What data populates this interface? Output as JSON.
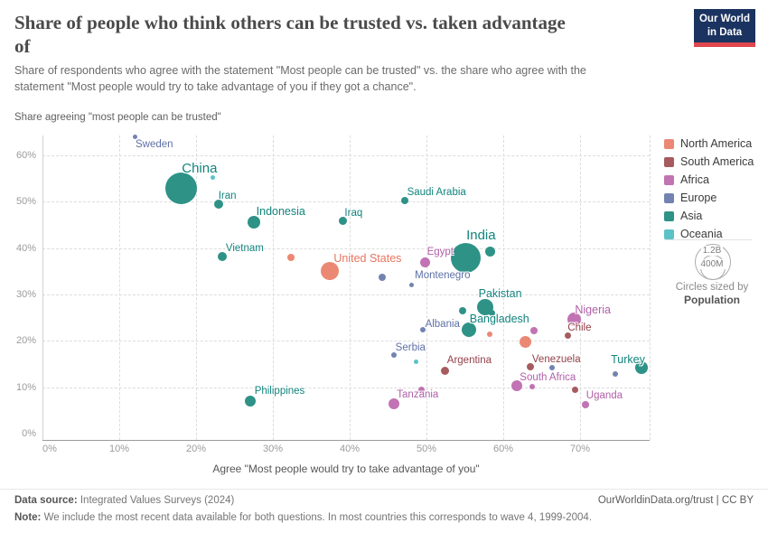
{
  "logo": {
    "line1": "Our World",
    "line2": "in Data"
  },
  "chart_data": {
    "type": "scatter",
    "title": "Share of people who think others can be trusted vs. taken advantage\nof",
    "subtitle": "Share of respondents who agree with the statement \"Most people can be trusted\" vs. the share who agree with the\nstatement \"Most people would try to take advantage of you if they got a chance\".",
    "ylabel": "Share agreeing \"most people can be trusted\"",
    "xlabel": "Agree \"Most people would try to take advantage of you\"",
    "x_ticks": [
      0,
      10,
      20,
      30,
      40,
      50,
      60,
      70
    ],
    "y_ticks": [
      0,
      10,
      20,
      30,
      40,
      50,
      60
    ],
    "xlim": [
      0,
      79
    ],
    "ylim": [
      0,
      65
    ],
    "grid": true,
    "legend_position": "right",
    "tick_suffix": "%",
    "series": [
      {
        "name": "North America",
        "color": "#EB8874",
        "label_color": "#E8745F",
        "points": [
          {
            "name": "United States",
            "x": 37.4,
            "y": 35.1,
            "r": 10,
            "label": {
              "dx": 42,
              "dy": -13,
              "size": 12.5
            }
          },
          {
            "x": 32.4,
            "y": 37.9,
            "r": 4
          },
          {
            "x": 58.2,
            "y": 21.4,
            "r": 3
          },
          {
            "x": 62.9,
            "y": 19.7,
            "r": 6.5
          }
        ]
      },
      {
        "name": "South America",
        "color": "#A65B5E",
        "label_color": "#933F48",
        "points": [
          {
            "name": "Chile",
            "x": 68.4,
            "y": 21.1,
            "r": 3.5,
            "label": {
              "dx": 13,
              "dy": -8
            }
          },
          {
            "name": "Argentina",
            "x": 52.4,
            "y": 13.6,
            "r": 4.5,
            "label": {
              "dx": 27,
              "dy": -10
            }
          },
          {
            "name": "Venezuela",
            "x": 63.5,
            "y": 14.5,
            "r": 4,
            "label": {
              "dx": 29,
              "dy": -7
            }
          },
          {
            "x": 69.4,
            "y": 9.4,
            "r": 3.5
          }
        ]
      },
      {
        "name": "Africa",
        "color": "#C173B3",
        "label_color": "#B05FA8",
        "points": [
          {
            "name": "Egypt",
            "x": 49.8,
            "y": 37.0,
            "r": 5.5,
            "label": {
              "dx": 17,
              "dy": -10
            }
          },
          {
            "name": "Nigeria",
            "x": 69.2,
            "y": 24.6,
            "r": 7.5,
            "label": {
              "dx": 21,
              "dy": -10,
              "size": 12.5
            }
          },
          {
            "name": "South Africa",
            "x": 61.8,
            "y": 10.3,
            "r": 6,
            "label": {
              "dx": 34,
              "dy": -8
            }
          },
          {
            "name": "Uganda",
            "x": 70.7,
            "y": 6.2,
            "r": 4,
            "label": {
              "dx": 21,
              "dy": -9
            }
          },
          {
            "name": "Tanzania",
            "x": 45.8,
            "y": 6.4,
            "r": 6,
            "label": {
              "dx": 26,
              "dy": -9
            }
          },
          {
            "x": 64.0,
            "y": 22.3,
            "r": 4
          },
          {
            "x": 63.8,
            "y": 10.2,
            "r": 3
          },
          {
            "x": 49.4,
            "y": 9.4,
            "r": 3.5
          }
        ]
      },
      {
        "name": "Europe",
        "color": "#7383B1",
        "label_color": "#5E70A6",
        "points": [
          {
            "name": "Sweden",
            "x": 12.0,
            "y": 64.0,
            "r": 2.5,
            "label": {
              "dx": 1,
              "dy": 9,
              "anchor": "start"
            }
          },
          {
            "name": "Montenegro",
            "x": 48.1,
            "y": 32.0,
            "r": 2.5,
            "label": {
              "dx": 34,
              "dy": -10
            }
          },
          {
            "name": "Albania",
            "x": 49.5,
            "y": 22.4,
            "r": 3,
            "label": {
              "dx": 22,
              "dy": -5
            }
          },
          {
            "name": "Serbia",
            "x": 45.8,
            "y": 17.0,
            "r": 3,
            "label": {
              "dx": 18,
              "dy": -7
            }
          },
          {
            "x": 44.2,
            "y": 33.7,
            "r": 4
          },
          {
            "x": 66.3,
            "y": 14.2,
            "r": 3
          },
          {
            "x": 74.6,
            "y": 12.8,
            "r": 3
          }
        ]
      },
      {
        "name": "Asia",
        "color": "#2E9287",
        "label_color": "#12837D",
        "points": [
          {
            "name": "China",
            "x": 18.1,
            "y": 52.8,
            "r": 17.5,
            "label": {
              "dx": 20,
              "dy": -22,
              "size": 15
            }
          },
          {
            "name": "Iran",
            "x": 22.9,
            "y": 49.4,
            "r": 5,
            "label": {
              "dx": 10,
              "dy": -9
            }
          },
          {
            "name": "Indonesia",
            "x": 27.5,
            "y": 45.5,
            "r": 7,
            "label": {
              "dx": 30,
              "dy": -12,
              "size": 12.5
            }
          },
          {
            "name": "Vietnam",
            "x": 23.4,
            "y": 38.1,
            "r": 5,
            "label": {
              "dx": 25,
              "dy": -9
            }
          },
          {
            "name": "Iraq",
            "x": 39.1,
            "y": 45.9,
            "r": 4.5,
            "label": {
              "dx": 12,
              "dy": -7
            }
          },
          {
            "name": "Saudi Arabia",
            "x": 47.2,
            "y": 50.3,
            "r": 4,
            "label": {
              "dx": 35,
              "dy": -8
            }
          },
          {
            "name": "India",
            "x": 55.1,
            "y": 37.8,
            "r": 16.5,
            "label": {
              "dx": 17,
              "dy": -25,
              "size": 15
            }
          },
          {
            "name": "Pakistan",
            "x": 57.6,
            "y": 27.3,
            "r": 9,
            "label": {
              "dx": 17,
              "dy": -14,
              "size": 12.5
            }
          },
          {
            "name": "Bangladesh",
            "x": 55.5,
            "y": 22.5,
            "r": 8,
            "label": {
              "dx": 34,
              "dy": -11,
              "size": 12.5
            }
          },
          {
            "name": "Turkey",
            "x": 78.0,
            "y": 14.2,
            "r": 7,
            "label": {
              "dx": -15,
              "dy": -9,
              "size": 12.5
            }
          },
          {
            "name": "Philippines",
            "x": 27.0,
            "y": 7.0,
            "r": 6,
            "label": {
              "dx": 33,
              "dy": -10
            }
          },
          {
            "x": 58.3,
            "y": 39.3,
            "r": 5.5
          },
          {
            "x": 54.7,
            "y": 26.5,
            "r": 4
          },
          {
            "x": 58.5,
            "y": 26.1,
            "r": 3.5
          }
        ]
      },
      {
        "name": "Oceania",
        "color": "#5BC2C7",
        "label_color": "#3AACB8",
        "points": [
          {
            "x": 22.2,
            "y": 55.2,
            "r": 2.5
          },
          {
            "x": 48.7,
            "y": 15.4,
            "r": 2.5
          }
        ]
      }
    ]
  },
  "size_legend": {
    "big_label": "1.2B",
    "small_label": "400M",
    "caption": "Circles sized by",
    "caption_bold": "Population"
  },
  "footer": {
    "source_label": "Data source:",
    "source_value": " Integrated Values Surveys (2024)",
    "credit": "OurWorldinData.org/trust | CC BY",
    "note_label": "Note:",
    "note_value": " We include the most recent data available for both questions. In most countries this corresponds to wave 4, 1999-2004."
  }
}
